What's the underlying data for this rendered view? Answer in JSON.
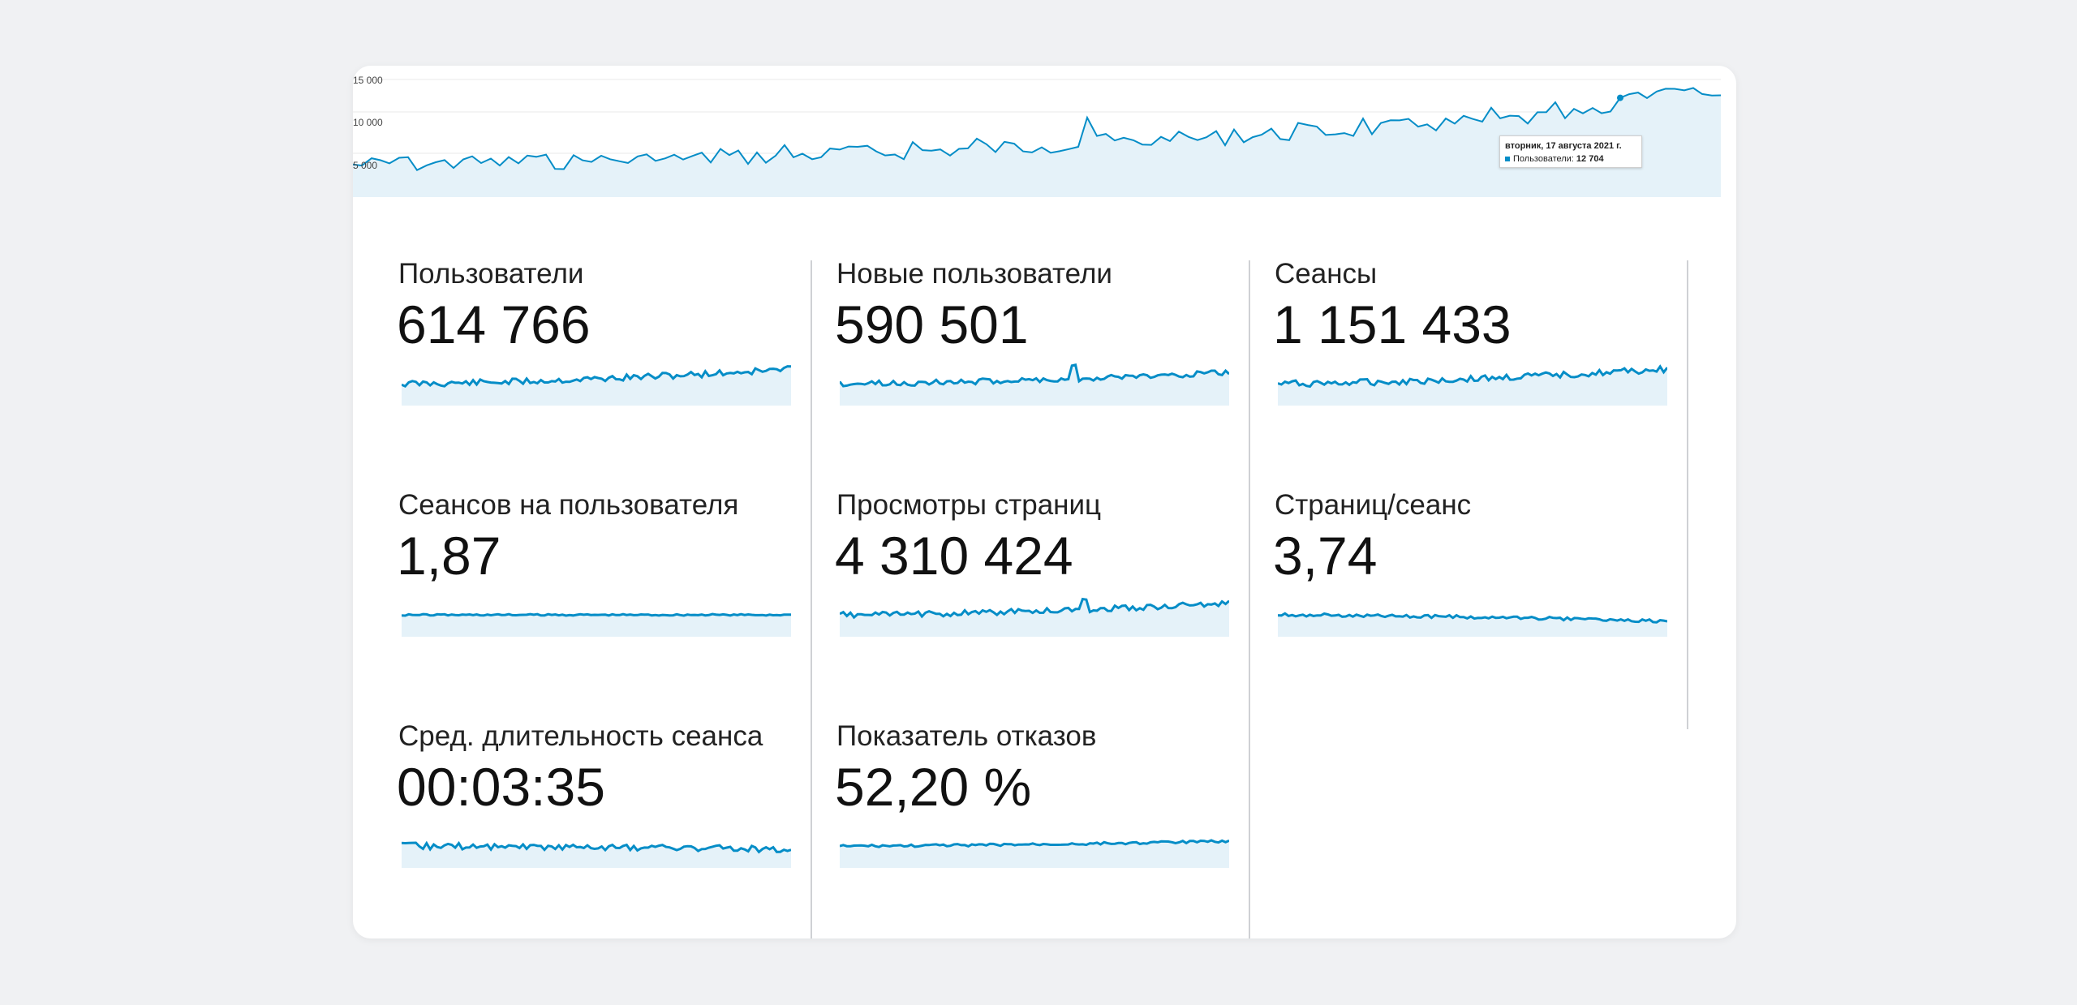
{
  "main_chart": {
    "y_ticks": [
      "15 000",
      "10 000",
      "5 000"
    ],
    "line_color": "#058dc7",
    "fill_color": "#e5f2f9",
    "tooltip": {
      "date": "вторник, 17 августа 2021 г.",
      "series": "Пользователи:",
      "value": "12 704"
    }
  },
  "metrics": [
    {
      "label": "Пользователи",
      "value": "614 766"
    },
    {
      "label": "Новые пользователи",
      "value": "590 501"
    },
    {
      "label": "Сеансы",
      "value": "1 151 433"
    },
    {
      "label": "Сеансов на пользователя",
      "value": "1,87"
    },
    {
      "label": "Просмотры страниц",
      "value": "4 310 424"
    },
    {
      "label": "Страниц/сеанс",
      "value": "3,74"
    },
    {
      "label": "Сред. длительность сеанса",
      "value": "00:03:35"
    },
    {
      "label": "Показатель отказов",
      "value": "52,20 %"
    }
  ]
}
